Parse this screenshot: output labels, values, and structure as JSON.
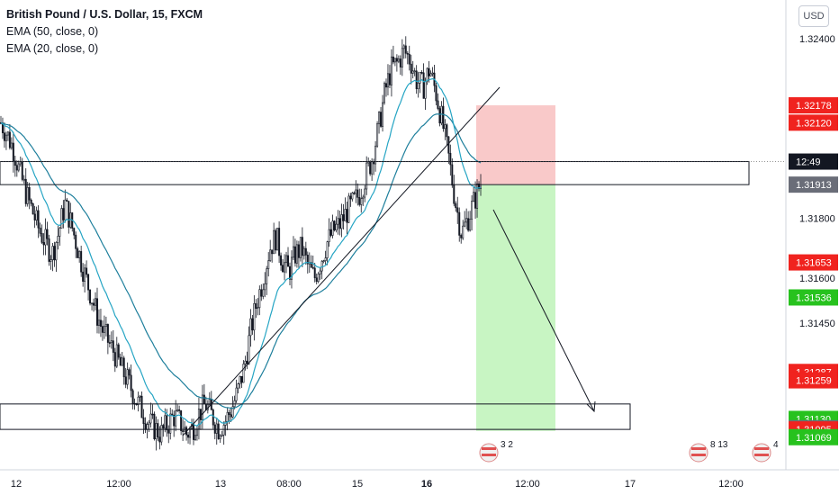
{
  "symbol": {
    "title": "British Pound / U.S. Dollar, 15, FXCM",
    "indicators": [
      "EMA (50, close, 0)",
      "EMA (20, close, 0)"
    ]
  },
  "currency_button": "USD",
  "colors": {
    "candle": "#131722",
    "ema_fast": "#26a5c4",
    "ema_slow": "#1e7f9c",
    "stop_zone": "#f9c9c9",
    "target_zone": "#c8f5c3",
    "tag_red": "#f0231f",
    "tag_green": "#27c21e",
    "tag_gray": "#6a6d78",
    "tag_dark": "#131722"
  },
  "chart_data": {
    "type": "candlestick",
    "symbol": "GBPUSD",
    "timeframe": "15",
    "ylim": [
      1.3096,
      1.3253
    ],
    "x_tick_labels": [
      "12",
      "12:00",
      "13",
      "08:00",
      "15",
      "16",
      "12:00",
      "17",
      "12:00"
    ],
    "y_tick_labels": [
      "1.32400",
      "1.31800",
      "1.31600",
      "1.31450"
    ],
    "y_tick_values": [
      1.324,
      1.318,
      1.316,
      1.3145
    ],
    "price_tags": [
      {
        "label": "1.32178",
        "value": 1.32178,
        "color": "red"
      },
      {
        "label": "1.32120",
        "value": 1.3212,
        "color": "red"
      },
      {
        "label": "12:49",
        "value": 1.3199,
        "color": "dark"
      },
      {
        "label": "1.31913",
        "value": 1.31913,
        "color": "gray"
      },
      {
        "label": "1.31653",
        "value": 1.31653,
        "color": "red"
      },
      {
        "label": "1.31536",
        "value": 1.31536,
        "color": "green"
      },
      {
        "label": "1.31287",
        "value": 1.31287,
        "color": "red"
      },
      {
        "label": "1.31259",
        "value": 1.31259,
        "color": "red"
      },
      {
        "label": "1.31130",
        "value": 1.3113,
        "color": "green"
      },
      {
        "label": "1.31099",
        "value": 1.31099,
        "color": "gray"
      },
      {
        "label": "1.31095",
        "value": 1.31095,
        "color": "red"
      },
      {
        "label": "1.31069",
        "value": 1.31069,
        "color": "green"
      }
    ],
    "price_path": [
      1.3212,
      1.3208,
      1.3203,
      1.3195,
      1.3188,
      1.3182,
      1.3176,
      1.3172,
      1.3168,
      1.3175,
      1.3185,
      1.3178,
      1.317,
      1.3162,
      1.3155,
      1.3148,
      1.3142,
      1.3138,
      1.3134,
      1.3129,
      1.3125,
      1.312,
      1.3116,
      1.3112,
      1.311,
      1.3108,
      1.3111,
      1.3114,
      1.3112,
      1.3108,
      1.311,
      1.3115,
      1.3118,
      1.3114,
      1.311,
      1.3112,
      1.3116,
      1.3122,
      1.313,
      1.3142,
      1.3152,
      1.316,
      1.317,
      1.3174,
      1.3166,
      1.3162,
      1.3168,
      1.317,
      1.3164,
      1.316,
      1.3166,
      1.3172,
      1.3176,
      1.3178,
      1.3182,
      1.3185,
      1.3188,
      1.3194,
      1.32,
      1.321,
      1.3222,
      1.323,
      1.3232,
      1.3236,
      1.3233,
      1.3226,
      1.3224,
      1.323,
      1.3222,
      1.3212,
      1.32,
      1.3186,
      1.3175,
      1.318,
      1.3186,
      1.3192
    ],
    "annotations": {
      "resistance_zone": [
        1.31913,
        1.3199
      ],
      "support_zone": [
        1.31095,
        1.3118
      ],
      "stop_zone": [
        1.31913,
        1.32178
      ],
      "target_zone": [
        1.3109,
        1.31913
      ]
    },
    "events": [
      {
        "label": "3 2"
      },
      {
        "label": "8 13"
      },
      {
        "label": "4"
      }
    ]
  }
}
